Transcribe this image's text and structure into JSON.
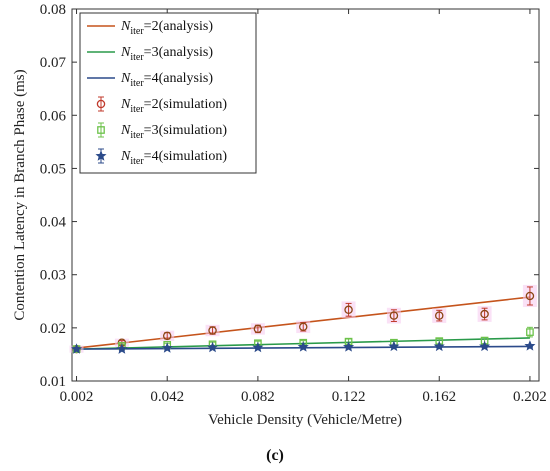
{
  "chart_data": {
    "type": "line",
    "xlabel": "Vehicle Density (Vehicle/Metre)",
    "ylabel": "Contention Latency in Branch Phase (ms)",
    "caption": "(c)",
    "xlim": [
      0.0,
      0.206
    ],
    "ylim": [
      0.01,
      0.08
    ],
    "x_ticks": [
      "0.002",
      "0.042",
      "0.082",
      "0.122",
      "0.162",
      "0.202"
    ],
    "x_tick_values": [
      0.002,
      0.042,
      0.082,
      0.122,
      0.162,
      0.202
    ],
    "y_ticks": [
      "0.01",
      "0.02",
      "0.03",
      "0.04",
      "0.05",
      "0.06",
      "0.07",
      "0.08"
    ],
    "y_tick_values": [
      0.01,
      0.02,
      0.03,
      0.04,
      0.05,
      0.06,
      0.07,
      0.08
    ],
    "grid": false,
    "legend_position": "top-left",
    "series": [
      {
        "legend_main": "N",
        "legend_sub": "iter",
        "legend_rest": "=2(analysis)",
        "kind": "analysis",
        "color": "#c5541c",
        "x": [
          0.002,
          0.202
        ],
        "y": [
          0.0162,
          0.0258
        ]
      },
      {
        "legend_main": "N",
        "legend_sub": "iter",
        "legend_rest": "=3(analysis)",
        "kind": "analysis",
        "color": "#2a9a4a",
        "x": [
          0.002,
          0.202
        ],
        "y": [
          0.016,
          0.0181
        ]
      },
      {
        "legend_main": "N",
        "legend_sub": "iter",
        "legend_rest": "=4(analysis)",
        "kind": "analysis",
        "color": "#2b4a8a",
        "x": [
          0.002,
          0.202
        ],
        "y": [
          0.016,
          0.0165
        ]
      },
      {
        "legend_main": "N",
        "legend_sub": "iter",
        "legend_rest": "=2(simulation)",
        "kind": "simulation",
        "marker": "circle",
        "color": "#c0392b",
        "point_color": "#8b4513",
        "x": [
          0.002,
          0.022,
          0.042,
          0.062,
          0.082,
          0.102,
          0.122,
          0.142,
          0.162,
          0.182,
          0.202
        ],
        "y": [
          0.016,
          0.0172,
          0.0185,
          0.0195,
          0.0198,
          0.0202,
          0.0234,
          0.0223,
          0.0223,
          0.0226,
          0.026
        ],
        "err": [
          0.0003,
          0.0004,
          0.0006,
          0.0007,
          0.0007,
          0.0008,
          0.0012,
          0.0011,
          0.001,
          0.0011,
          0.0017
        ]
      },
      {
        "legend_main": "N",
        "legend_sub": "iter",
        "legend_rest": "=3(simulation)",
        "kind": "simulation",
        "marker": "square",
        "color": "#6cc24a",
        "point_color": "#6cc24a",
        "x": [
          0.002,
          0.022,
          0.042,
          0.062,
          0.082,
          0.102,
          0.122,
          0.142,
          0.162,
          0.182,
          0.202
        ],
        "y": [
          0.016,
          0.0166,
          0.0168,
          0.0169,
          0.0171,
          0.0172,
          0.0174,
          0.0172,
          0.0175,
          0.0176,
          0.0192
        ],
        "err": [
          0.0002,
          0.0003,
          0.0003,
          0.0004,
          0.0004,
          0.0004,
          0.0005,
          0.0004,
          0.0005,
          0.0006,
          0.0009
        ]
      },
      {
        "legend_main": "N",
        "legend_sub": "iter",
        "legend_rest": "=4(simulation)",
        "kind": "simulation",
        "marker": "star",
        "color": "#2b4a8a",
        "point_color": "#2b4a8a",
        "x": [
          0.002,
          0.022,
          0.042,
          0.062,
          0.082,
          0.102,
          0.122,
          0.142,
          0.162,
          0.182,
          0.202
        ],
        "y": [
          0.016,
          0.016,
          0.0162,
          0.0163,
          0.0163,
          0.0164,
          0.0164,
          0.0165,
          0.0165,
          0.0165,
          0.0166
        ],
        "err": [
          0.0002,
          0.0002,
          0.0002,
          0.0002,
          0.0002,
          0.0002,
          0.0002,
          0.0002,
          0.0002,
          0.0002,
          0.0002
        ]
      }
    ]
  }
}
